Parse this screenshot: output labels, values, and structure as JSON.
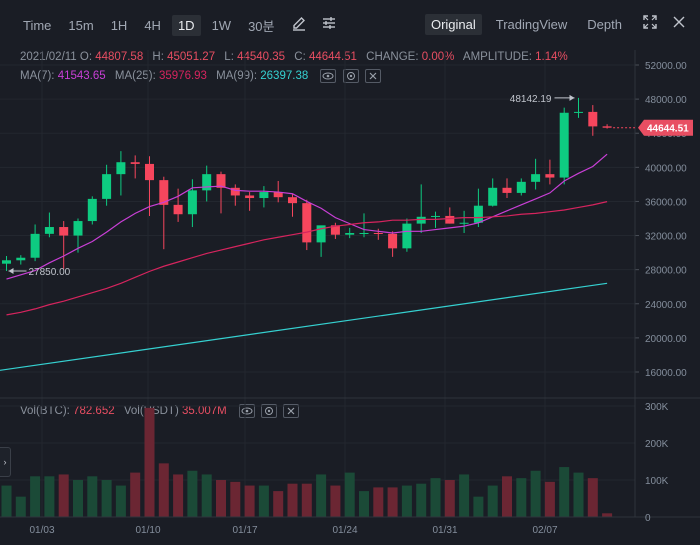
{
  "toolbar": {
    "intervals": [
      "Time",
      "15m",
      "1H",
      "4H",
      "1D",
      "1W",
      "30분"
    ],
    "active_interval": "1D",
    "views": [
      "Original",
      "TradingView",
      "Depth"
    ],
    "active_view": "Original"
  },
  "ohlc": {
    "date": "2021/02/11",
    "open_label": "O:",
    "open": "44807.58",
    "high_label": "H:",
    "high": "45051.27",
    "low_label": "L:",
    "low": "44540.35",
    "close_label": "C:",
    "close": "44644.51",
    "change_label": "CHANGE:",
    "change": "0.00%",
    "amplitude_label": "AMPLITUDE:",
    "amplitude": "1.14%"
  },
  "ma": {
    "ma7_label": "MA(7):",
    "ma7": "41543.65",
    "ma25_label": "MA(25):",
    "ma25": "35976.93",
    "ma99_label": "MA(99):",
    "ma99": "26397.38"
  },
  "volume": {
    "btc_label": "Vol(BTC):",
    "btc": "782.652",
    "usdt_label": "Vol(USDT)",
    "usdt": "35.007M"
  },
  "price_axis": [
    "52000.00",
    "48000.00",
    "44000.00",
    "40000.00",
    "36000.00",
    "32000.00",
    "28000.00",
    "24000.00",
    "20000.00",
    "16000.00"
  ],
  "volume_axis": [
    "300K",
    "200K",
    "100K",
    "0"
  ],
  "date_axis": [
    "01/03",
    "01/10",
    "01/17",
    "01/24",
    "01/31",
    "02/07"
  ],
  "current_price": "44644.51",
  "annotations": {
    "high": "48142.19",
    "low": "27850.00"
  },
  "colors": {
    "up": "#0ecb81",
    "down": "#f6465d",
    "ma7": "#c93fd6",
    "ma25": "#d6245e",
    "ma99": "#35d1d1"
  },
  "chart_data": {
    "type": "candlestick",
    "candles": [
      {
        "o": 28700,
        "h": 29600,
        "l": 27850,
        "c": 29100
      },
      {
        "o": 29100,
        "h": 29700,
        "l": 28600,
        "c": 29400
      },
      {
        "o": 29400,
        "h": 33300,
        "l": 29000,
        "c": 32200
      },
      {
        "o": 32200,
        "h": 34700,
        "l": 31800,
        "c": 33000
      },
      {
        "o": 33000,
        "h": 33700,
        "l": 28100,
        "c": 32000
      },
      {
        "o": 32000,
        "h": 34000,
        "l": 30000,
        "c": 33700
      },
      {
        "o": 33700,
        "h": 36600,
        "l": 33300,
        "c": 36300
      },
      {
        "o": 36300,
        "h": 40300,
        "l": 35500,
        "c": 39200
      },
      {
        "o": 39200,
        "h": 41900,
        "l": 36700,
        "c": 40600
      },
      {
        "o": 40600,
        "h": 41400,
        "l": 38700,
        "c": 40400
      },
      {
        "o": 40400,
        "h": 41300,
        "l": 34300,
        "c": 38500
      },
      {
        "o": 38500,
        "h": 38900,
        "l": 30400,
        "c": 35600
      },
      {
        "o": 35600,
        "h": 37500,
        "l": 33600,
        "c": 34500
      },
      {
        "o": 34500,
        "h": 38600,
        "l": 33000,
        "c": 37300
      },
      {
        "o": 37300,
        "h": 40200,
        "l": 36000,
        "c": 39200
      },
      {
        "o": 39200,
        "h": 39500,
        "l": 34600,
        "c": 37600
      },
      {
        "o": 37600,
        "h": 38000,
        "l": 35500,
        "c": 36700
      },
      {
        "o": 36700,
        "h": 37100,
        "l": 34900,
        "c": 36400
      },
      {
        "o": 36400,
        "h": 37800,
        "l": 35300,
        "c": 37100
      },
      {
        "o": 37100,
        "h": 38400,
        "l": 35900,
        "c": 36500
      },
      {
        "o": 36500,
        "h": 36900,
        "l": 34200,
        "c": 35800
      },
      {
        "o": 35800,
        "h": 36200,
        "l": 30300,
        "c": 31200
      },
      {
        "o": 31200,
        "h": 33000,
        "l": 29500,
        "c": 33200
      },
      {
        "o": 33200,
        "h": 33500,
        "l": 31600,
        "c": 32100
      },
      {
        "o": 32100,
        "h": 32900,
        "l": 31700,
        "c": 32300
      },
      {
        "o": 32300,
        "h": 34600,
        "l": 31800,
        "c": 32300
      },
      {
        "o": 32300,
        "h": 32800,
        "l": 31500,
        "c": 32200
      },
      {
        "o": 32200,
        "h": 32500,
        "l": 29500,
        "c": 30500
      },
      {
        "o": 30500,
        "h": 34000,
        "l": 30100,
        "c": 33400
      },
      {
        "o": 33400,
        "h": 38000,
        "l": 32300,
        "c": 34200
      },
      {
        "o": 34200,
        "h": 34800,
        "l": 32900,
        "c": 34300
      },
      {
        "o": 34300,
        "h": 35300,
        "l": 33400,
        "c": 33400
      },
      {
        "o": 33400,
        "h": 34900,
        "l": 32300,
        "c": 33500
      },
      {
        "o": 33500,
        "h": 37500,
        "l": 33000,
        "c": 35500
      },
      {
        "o": 35500,
        "h": 38700,
        "l": 35400,
        "c": 37600
      },
      {
        "o": 37600,
        "h": 38700,
        "l": 36400,
        "c": 37000
      },
      {
        "o": 37000,
        "h": 38700,
        "l": 36700,
        "c": 38300
      },
      {
        "o": 38300,
        "h": 41000,
        "l": 37400,
        "c": 39200
      },
      {
        "o": 39200,
        "h": 40900,
        "l": 38000,
        "c": 38800
      },
      {
        "o": 38800,
        "h": 47000,
        "l": 38000,
        "c": 46400
      },
      {
        "o": 46400,
        "h": 48142,
        "l": 45800,
        "c": 46500
      },
      {
        "o": 46500,
        "h": 47300,
        "l": 43700,
        "c": 44800
      },
      {
        "o": 44807.58,
        "h": 45051.27,
        "l": 44540.35,
        "c": 44644.51
      }
    ],
    "volumes": [
      85,
      55,
      110,
      110,
      115,
      100,
      110,
      100,
      85,
      120,
      295,
      145,
      115,
      125,
      115,
      100,
      95,
      85,
      85,
      70,
      90,
      90,
      115,
      85,
      120,
      70,
      80,
      80,
      85,
      90,
      105,
      100,
      115,
      55,
      85,
      110,
      105,
      125,
      95,
      135,
      120,
      105,
      10
    ],
    "ma7": [
      26900,
      27400,
      27900,
      28800,
      29600,
      30500,
      31300,
      32400,
      33600,
      34600,
      35400,
      35900,
      36600,
      37600,
      37700,
      37800,
      37300,
      37200,
      37200,
      37100,
      36900,
      36000,
      35200,
      34100,
      33400,
      32700,
      32500,
      32300,
      32500,
      32500,
      32700,
      32900,
      33100,
      33500,
      34200,
      34900,
      35600,
      36300,
      37000,
      38400,
      39300,
      40100,
      41543.65
    ],
    "ma25": [
      22700,
      23000,
      23400,
      23900,
      24300,
      24800,
      25300,
      25800,
      26400,
      27100,
      27800,
      28400,
      28900,
      29400,
      29900,
      30300,
      30700,
      31100,
      31500,
      31800,
      32100,
      32400,
      32800,
      33100,
      33300,
      33500,
      33600,
      33800,
      33800,
      33900,
      33900,
      34000,
      34100,
      34100,
      34200,
      34300,
      34500,
      34600,
      34800,
      35000,
      35300,
      35600,
      35976.93
    ]
  }
}
